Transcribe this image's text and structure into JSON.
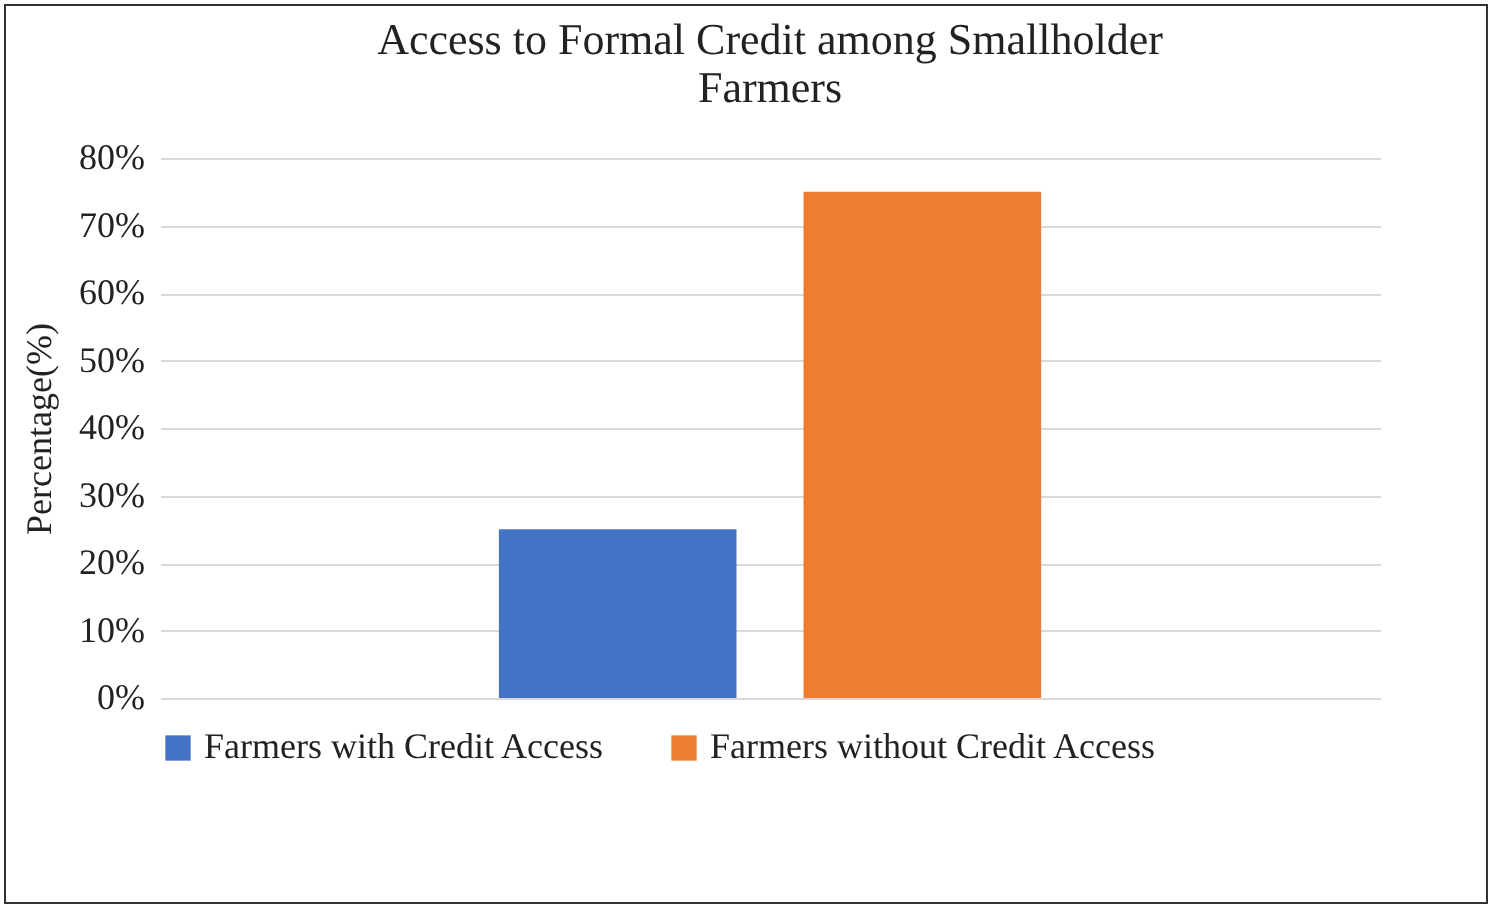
{
  "chart_data": {
    "type": "bar",
    "title": "Access to Formal Credit among Smallholder Farmers",
    "ylabel": "Percentage(%)",
    "categories": [
      null
    ],
    "series": [
      {
        "name": "Farmers with Credit Access",
        "color": "#4472c4",
        "values": [
          25
        ]
      },
      {
        "name": "Farmers without Credit Access",
        "color": "#ed7d31",
        "values": [
          75
        ]
      }
    ],
    "ylim": [
      0,
      80
    ],
    "yticks": [
      {
        "value": 0,
        "label": "0%"
      },
      {
        "value": 10,
        "label": "10%"
      },
      {
        "value": 20,
        "label": "20%"
      },
      {
        "value": 30,
        "label": "30%"
      },
      {
        "value": 40,
        "label": "40%"
      },
      {
        "value": 50,
        "label": "50%"
      },
      {
        "value": 60,
        "label": "60%"
      },
      {
        "value": 70,
        "label": "70%"
      },
      {
        "value": 80,
        "label": "80%"
      }
    ],
    "grid": "y",
    "legend": "bottom"
  }
}
